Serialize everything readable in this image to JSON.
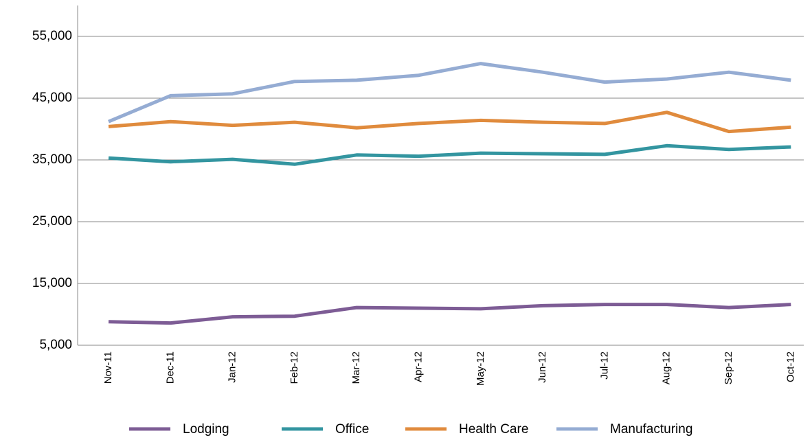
{
  "chart_data": {
    "type": "line",
    "categories": [
      "Nov-11",
      "Dec-11",
      "Jan-12",
      "Feb-12",
      "Mar-12",
      "Apr-12",
      "May-12",
      "Jun-12",
      "Jul-12",
      "Aug-12",
      "Sep-12",
      "Oct-12"
    ],
    "series": [
      {
        "name": "Lodging",
        "color": "#7d5c95",
        "values": [
          8800,
          8600,
          9600,
          9700,
          11100,
          11000,
          10900,
          11400,
          11600,
          11600,
          11100,
          11600
        ]
      },
      {
        "name": "Office",
        "color": "#3395a0",
        "values": [
          35300,
          34700,
          35100,
          34300,
          35800,
          35600,
          36100,
          36000,
          35900,
          37300,
          36700,
          37100
        ]
      },
      {
        "name": "Health Care",
        "color": "#e08b3d",
        "values": [
          40400,
          41200,
          40600,
          41100,
          40200,
          40900,
          41400,
          41100,
          40900,
          42700,
          39600,
          40300
        ]
      },
      {
        "name": "Manufacturing",
        "color": "#95acd3",
        "values": [
          41200,
          45400,
          45700,
          47700,
          47900,
          48700,
          50600,
          49200,
          47600,
          48100,
          49200,
          47900
        ]
      }
    ],
    "ylim": [
      5000,
      60000
    ],
    "yticks": [
      {
        "value": 5000,
        "label": "5,000"
      },
      {
        "value": 15000,
        "label": "15,000"
      },
      {
        "value": 25000,
        "label": "25,000"
      },
      {
        "value": 35000,
        "label": "35,000"
      },
      {
        "value": 45000,
        "label": "45,000"
      },
      {
        "value": 55000,
        "label": "55,000"
      }
    ],
    "grid": true,
    "legend": "bottom"
  }
}
